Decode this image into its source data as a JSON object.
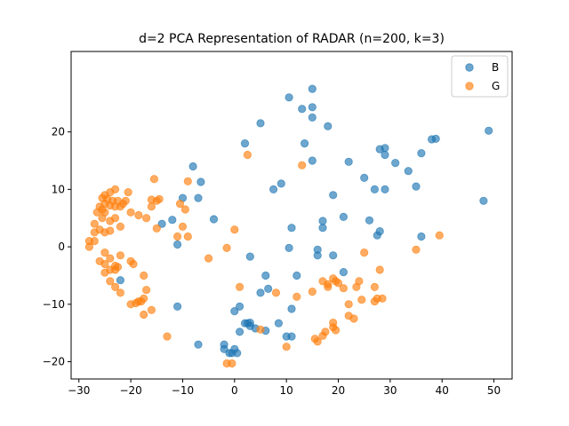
{
  "chart_data": {
    "type": "scatter",
    "title": "d=2 PCA Representation of RADAR (n=200, k=3)",
    "xlabel": "",
    "ylabel": "",
    "xlim": [
      -31.5,
      53.5
    ],
    "ylim": [
      -23,
      34
    ],
    "xticks": [
      -30,
      -20,
      -10,
      0,
      10,
      20,
      30,
      40,
      50
    ],
    "yticks": [
      -20,
      -10,
      0,
      10,
      20
    ],
    "grid": false,
    "legend_position": "top-right",
    "series": [
      {
        "name": "B",
        "color": "#1f77b4",
        "points": [
          [
            15,
            27.5
          ],
          [
            10.5,
            26
          ],
          [
            13,
            24
          ],
          [
            15,
            24.3
          ],
          [
            15,
            22.5
          ],
          [
            5,
            21.5
          ],
          [
            18,
            21
          ],
          [
            2,
            18
          ],
          [
            13.5,
            18
          ],
          [
            28,
            17
          ],
          [
            29,
            17.2
          ],
          [
            38,
            18.7
          ],
          [
            38.8,
            18.8
          ],
          [
            49,
            20.2
          ],
          [
            15,
            15
          ],
          [
            22,
            14.8
          ],
          [
            29,
            16
          ],
          [
            36,
            16.3
          ],
          [
            31,
            14.6
          ],
          [
            33.5,
            13.2
          ],
          [
            -8,
            14
          ],
          [
            -6.5,
            11.3
          ],
          [
            25,
            12
          ],
          [
            9,
            11
          ],
          [
            7.5,
            10
          ],
          [
            27,
            10
          ],
          [
            29,
            10
          ],
          [
            35,
            10.5
          ],
          [
            -10,
            8.5
          ],
          [
            -7,
            8.5
          ],
          [
            19,
            9
          ],
          [
            -12,
            4.7
          ],
          [
            -4,
            4.8
          ],
          [
            17,
            4.5
          ],
          [
            21,
            5.2
          ],
          [
            26,
            4.6
          ],
          [
            -14,
            4
          ],
          [
            11,
            3.3
          ],
          [
            17,
            3.3
          ],
          [
            28,
            2.7
          ],
          [
            27.5,
            2
          ],
          [
            36,
            1.8
          ],
          [
            48,
            8
          ],
          [
            -11,
            0.4
          ],
          [
            10.5,
            -0.2
          ],
          [
            16,
            -0.5
          ],
          [
            19,
            -1.5
          ],
          [
            16,
            -1.5
          ],
          [
            3,
            -1.7
          ],
          [
            21,
            -4.4
          ],
          [
            -22,
            -5.8
          ],
          [
            6,
            -5
          ],
          [
            12,
            -5
          ],
          [
            5,
            -8
          ],
          [
            6.5,
            -7.3
          ],
          [
            -11,
            -10.4
          ],
          [
            1,
            -10.4
          ],
          [
            11,
            -10.8
          ],
          [
            0,
            -11.2
          ],
          [
            2.5,
            -13.3
          ],
          [
            3,
            -13.2
          ],
          [
            2,
            -13.3
          ],
          [
            8.5,
            -13.3
          ],
          [
            3,
            -13.8
          ],
          [
            4,
            -14.2
          ],
          [
            6,
            -14.6
          ],
          [
            1,
            -14.8
          ],
          [
            10,
            -15.6
          ],
          [
            11,
            -15.6
          ],
          [
            -7,
            -17
          ],
          [
            -2,
            -17
          ],
          [
            0,
            -17.8
          ],
          [
            -2,
            -17.8
          ],
          [
            -1,
            -18.5
          ],
          [
            -0.5,
            -18.5
          ],
          [
            0.5,
            -18.5
          ]
        ]
      },
      {
        "name": "G",
        "color": "#ff7f0e",
        "points": [
          [
            2.5,
            16
          ],
          [
            -15.5,
            11.8
          ],
          [
            -9,
            11.4
          ],
          [
            13,
            14.2
          ],
          [
            -20.5,
            9.5
          ],
          [
            -23,
            10
          ],
          [
            -21,
            8
          ],
          [
            -24,
            9.5
          ],
          [
            -25,
            9
          ],
          [
            -25.5,
            8.5
          ],
          [
            -24.5,
            8.3
          ],
          [
            -25,
            7.5
          ],
          [
            -23.5,
            8
          ],
          [
            -22.5,
            8
          ],
          [
            -26,
            7
          ],
          [
            -24,
            7.2
          ],
          [
            -25.5,
            6.5
          ],
          [
            -26.5,
            6
          ],
          [
            -25,
            6
          ],
          [
            -23,
            7
          ],
          [
            -22,
            7
          ],
          [
            -21.5,
            7.5
          ],
          [
            -16,
            8.2
          ],
          [
            -14.5,
            8.3
          ],
          [
            -15,
            8
          ],
          [
            -16,
            7
          ],
          [
            -10.5,
            7.5
          ],
          [
            -9.5,
            6.5
          ],
          [
            -20,
            6
          ],
          [
            -18.5,
            5.5
          ],
          [
            -17,
            5
          ],
          [
            -24,
            4.5
          ],
          [
            -25.5,
            5
          ],
          [
            -23,
            5
          ],
          [
            -27,
            4
          ],
          [
            -26,
            3
          ],
          [
            -27,
            2.5
          ],
          [
            -25,
            2.5
          ],
          [
            -24,
            2.8
          ],
          [
            -22,
            3.5
          ],
          [
            -15,
            3.2
          ],
          [
            -10,
            3.5
          ],
          [
            -28,
            1
          ],
          [
            -27,
            1
          ],
          [
            -28,
            0
          ],
          [
            0,
            3
          ],
          [
            -11,
            1.8
          ],
          [
            -9,
            1.8
          ],
          [
            -1.5,
            -0.2
          ],
          [
            -5,
            -2
          ],
          [
            -25,
            -1
          ],
          [
            -22,
            -1.5
          ],
          [
            -20,
            -2.5
          ],
          [
            -19.5,
            -3
          ],
          [
            -24,
            -2
          ],
          [
            -25,
            -3
          ],
          [
            -23,
            -3.3
          ],
          [
            -26,
            -2.5
          ],
          [
            -24,
            -4
          ],
          [
            -25,
            -4.5
          ],
          [
            -23,
            -4
          ],
          [
            -22.5,
            -3.5
          ],
          [
            -17.5,
            -5
          ],
          [
            -24,
            -6
          ],
          [
            -17,
            -7.5
          ],
          [
            -23,
            -7
          ],
          [
            -22,
            -8
          ],
          [
            -17.5,
            -9
          ],
          [
            -18,
            -9.5
          ],
          [
            -18.5,
            -9.5
          ],
          [
            -20,
            -10
          ],
          [
            -19,
            -9.8
          ],
          [
            -16,
            -11
          ],
          [
            -17.5,
            -11.8
          ],
          [
            -13,
            -15.6
          ],
          [
            8,
            -8
          ],
          [
            12,
            -8.7
          ],
          [
            17,
            -6
          ],
          [
            15,
            -7.8
          ],
          [
            18,
            -6.5
          ],
          [
            19,
            -5.5
          ],
          [
            19.5,
            -6
          ],
          [
            20,
            -6.3
          ],
          [
            18,
            -7
          ],
          [
            21,
            -7.2
          ],
          [
            23.5,
            -7
          ],
          [
            24,
            -6
          ],
          [
            24.5,
            -9.2
          ],
          [
            22,
            -10
          ],
          [
            28,
            -4
          ],
          [
            27,
            -7
          ],
          [
            25,
            -1
          ],
          [
            35,
            -0.5
          ],
          [
            39.5,
            2
          ],
          [
            27.5,
            -9
          ],
          [
            28.5,
            -9
          ],
          [
            27,
            -9.5
          ],
          [
            22,
            -12
          ],
          [
            23,
            -12.5
          ],
          [
            19,
            -13.2
          ],
          [
            19,
            -14
          ],
          [
            19.5,
            -14.5
          ],
          [
            17.5,
            -14.8
          ],
          [
            17,
            -15.5
          ],
          [
            15.5,
            -16
          ],
          [
            16,
            -16.5
          ],
          [
            10,
            -17.4
          ],
          [
            -0.5,
            -20.3
          ],
          [
            -1.5,
            -20.3
          ],
          [
            5,
            -14.4
          ],
          [
            1,
            -7
          ]
        ]
      }
    ]
  }
}
